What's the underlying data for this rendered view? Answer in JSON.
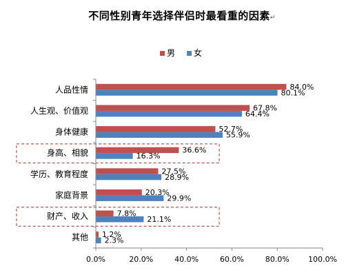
{
  "chart_data": {
    "type": "bar",
    "orientation": "horizontal",
    "title": "不同性别青年选择伴侣时最看重的因素",
    "title_mark": "↵",
    "categories": [
      "人品性情",
      "人生观、价值观",
      "身体健康",
      "身高、相貌",
      "学历、教育程度",
      "家庭背景",
      "财产、收入",
      "其他"
    ],
    "series": [
      {
        "name": "男",
        "color": "#C0504D",
        "values": [
          84.0,
          67.8,
          52.7,
          36.6,
          27.5,
          20.3,
          7.8,
          1.2
        ],
        "labels": [
          "84.0%",
          "67.8%",
          "52.7%",
          "36.6%",
          "27.5%",
          "20.3%",
          "7.8%",
          "1.2%"
        ]
      },
      {
        "name": "女",
        "color": "#4F81BD",
        "values": [
          80.1,
          64.4,
          55.9,
          16.3,
          28.9,
          29.9,
          21.1,
          2.3
        ],
        "labels": [
          "80.1%",
          "64.4%",
          "55.9%",
          "16.3%",
          "28.9%",
          "29.9%",
          "21.1%",
          "2.3%"
        ]
      }
    ],
    "xlim": [
      0,
      100
    ],
    "x_ticks": [
      0,
      20,
      40,
      60,
      80,
      100
    ],
    "x_tick_labels": [
      "0.0%",
      "20.0%",
      "40.0%",
      "60.0%",
      "80.0%",
      "100.0%"
    ],
    "grid": false,
    "legend_position": "top",
    "highlighted_categories": [
      "身高、相貌",
      "财产、收入"
    ],
    "highlight_color": "#C0504D"
  }
}
